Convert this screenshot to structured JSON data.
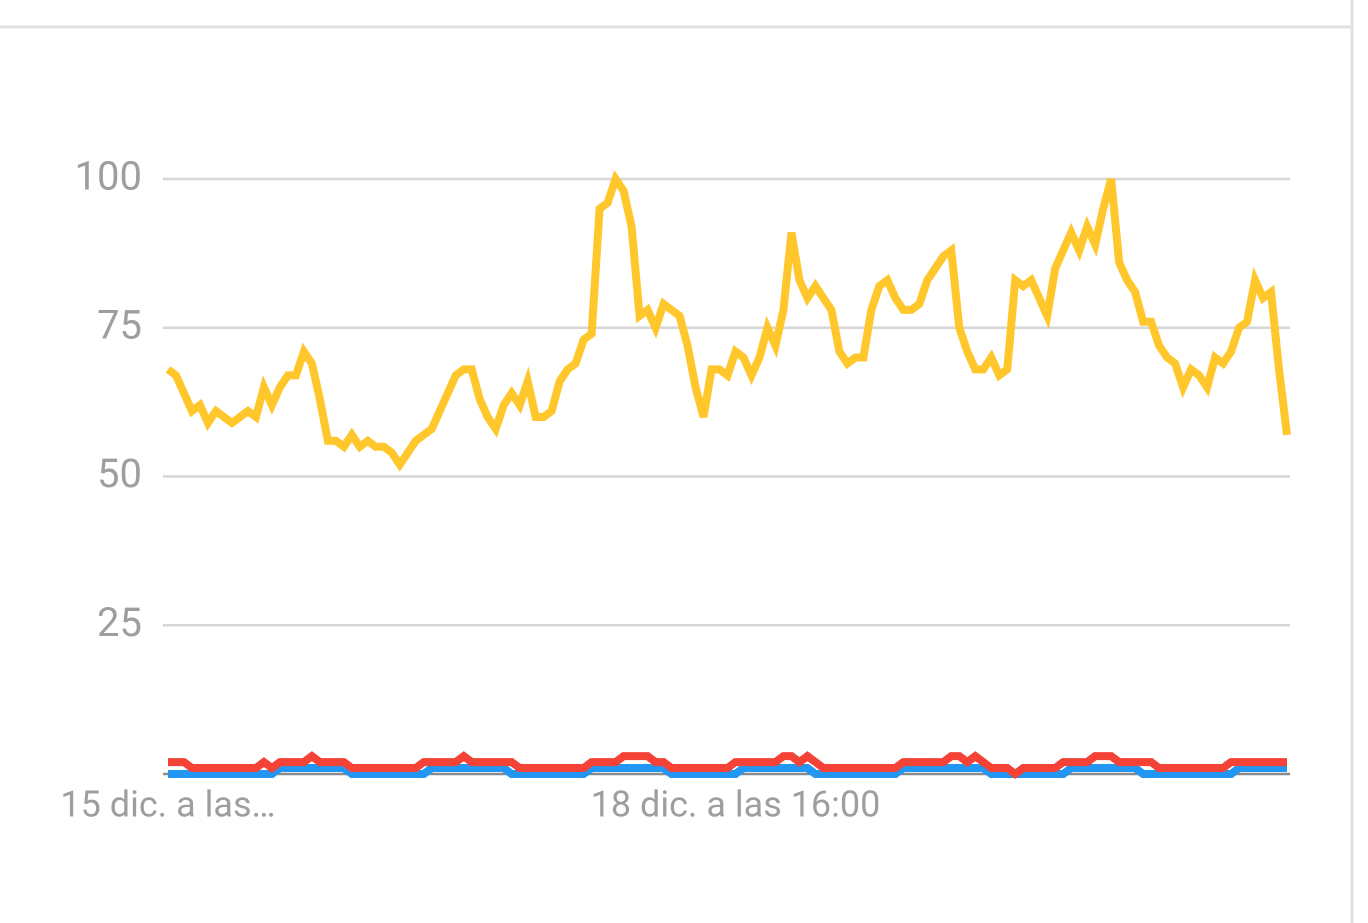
{
  "chart_data": {
    "type": "line",
    "categories": [
      "15 dic. a las…",
      null,
      null,
      null,
      null,
      null,
      null,
      null,
      null,
      null,
      null,
      null,
      null,
      null,
      null,
      null,
      null,
      null,
      null,
      null,
      null,
      null,
      null,
      null,
      null,
      null,
      null,
      null,
      null,
      null,
      null,
      null,
      null,
      null,
      null,
      null,
      null,
      null,
      null,
      null,
      null,
      null,
      null,
      null,
      null,
      null,
      null,
      null,
      null,
      null,
      null,
      null,
      null,
      null,
      null,
      null,
      null,
      null,
      null,
      null,
      null,
      null,
      null,
      null,
      null,
      null,
      null,
      null,
      null,
      null,
      null,
      "18 dic. a las 16:00",
      null,
      null,
      null,
      null,
      null,
      null,
      null,
      null,
      null,
      null,
      null,
      null,
      null,
      null,
      null,
      null,
      null,
      null,
      null,
      null,
      null,
      null,
      null,
      null,
      null,
      null,
      null,
      null,
      null,
      null,
      null,
      null,
      null,
      null,
      null,
      null,
      null,
      null,
      null,
      null,
      null,
      null,
      null,
      null,
      null,
      null,
      null,
      null,
      null,
      null,
      null,
      null,
      null,
      null,
      null,
      null,
      null,
      null,
      null,
      null,
      null,
      null,
      null,
      null,
      null,
      null,
      null,
      null,
      null
    ],
    "series": [
      {
        "color": "#ffc72c",
        "values": [
          68,
          67,
          64,
          61,
          62,
          59,
          61,
          60,
          59,
          60,
          61,
          60,
          65,
          62,
          65,
          67,
          67,
          71,
          69,
          63,
          56,
          56,
          55,
          57,
          55,
          56,
          55,
          55,
          54,
          52,
          54,
          56,
          57,
          58,
          61,
          64,
          67,
          68,
          68,
          63,
          60,
          58,
          62,
          64,
          62,
          66,
          60,
          60,
          61,
          66,
          68,
          69,
          73,
          74,
          95,
          96,
          100,
          98,
          92,
          77,
          78,
          75,
          79,
          78,
          77,
          72,
          65,
          60,
          68,
          68,
          67,
          71,
          70,
          67,
          70,
          75,
          72,
          78,
          91,
          83,
          80,
          82,
          80,
          78,
          71,
          69,
          70,
          70,
          78,
          82,
          83,
          80,
          78,
          78,
          79,
          83,
          85,
          87,
          88,
          75,
          71,
          68,
          68,
          70,
          67,
          68,
          83,
          82,
          83,
          80,
          77,
          85,
          88,
          91,
          88,
          92,
          89,
          95,
          100,
          86,
          83,
          81,
          76,
          76,
          72,
          70,
          69,
          65,
          68,
          67,
          65,
          70,
          69,
          71,
          75,
          76,
          83,
          80,
          81,
          68,
          57
        ]
      },
      {
        "color": "#f44336",
        "values": [
          2,
          2,
          2,
          1,
          1,
          1,
          1,
          1,
          1,
          1,
          1,
          1,
          2,
          1,
          2,
          2,
          2,
          2,
          3,
          2,
          2,
          2,
          2,
          1,
          1,
          1,
          1,
          1,
          1,
          1,
          1,
          1,
          2,
          2,
          2,
          2,
          2,
          3,
          2,
          2,
          2,
          2,
          2,
          2,
          1,
          1,
          1,
          1,
          1,
          1,
          1,
          1,
          1,
          2,
          2,
          2,
          2,
          3,
          3,
          3,
          3,
          2,
          2,
          1,
          1,
          1,
          1,
          1,
          1,
          1,
          1,
          2,
          2,
          2,
          2,
          2,
          2,
          3,
          3,
          2,
          3,
          2,
          1,
          1,
          1,
          1,
          1,
          1,
          1,
          1,
          1,
          1,
          2,
          2,
          2,
          2,
          2,
          2,
          3,
          3,
          2,
          3,
          2,
          1,
          1,
          1,
          0,
          1,
          1,
          1,
          1,
          1,
          2,
          2,
          2,
          2,
          3,
          3,
          3,
          2,
          2,
          2,
          2,
          2,
          1,
          1,
          1,
          1,
          1,
          1,
          1,
          1,
          1,
          2,
          2,
          2,
          2,
          2,
          2,
          2,
          2
        ]
      },
      {
        "color": "#2196f3",
        "values": [
          0,
          0,
          0,
          0,
          0,
          0,
          0,
          0,
          0,
          0,
          0,
          0,
          0,
          0,
          1,
          1,
          1,
          1,
          1,
          1,
          1,
          1,
          1,
          0,
          0,
          0,
          0,
          0,
          0,
          0,
          0,
          0,
          0,
          1,
          1,
          1,
          1,
          1,
          1,
          1,
          1,
          1,
          1,
          0,
          0,
          0,
          0,
          0,
          0,
          0,
          0,
          0,
          0,
          1,
          1,
          1,
          1,
          1,
          1,
          1,
          1,
          1,
          1,
          0,
          0,
          0,
          0,
          0,
          0,
          0,
          0,
          0,
          1,
          1,
          1,
          1,
          1,
          1,
          1,
          1,
          1,
          0,
          0,
          0,
          0,
          0,
          0,
          0,
          0,
          0,
          0,
          0,
          1,
          1,
          1,
          1,
          1,
          1,
          1,
          1,
          1,
          1,
          1,
          0,
          0,
          0,
          0,
          0,
          0,
          0,
          0,
          0,
          0,
          1,
          1,
          1,
          1,
          1,
          1,
          1,
          1,
          1,
          0,
          0,
          0,
          0,
          0,
          0,
          0,
          0,
          0,
          0,
          0,
          0,
          1,
          1,
          1,
          1,
          1,
          1,
          1
        ]
      }
    ],
    "ylim": [
      0,
      100
    ],
    "yticks": [
      25,
      50,
      75,
      100
    ],
    "grid": true
  }
}
